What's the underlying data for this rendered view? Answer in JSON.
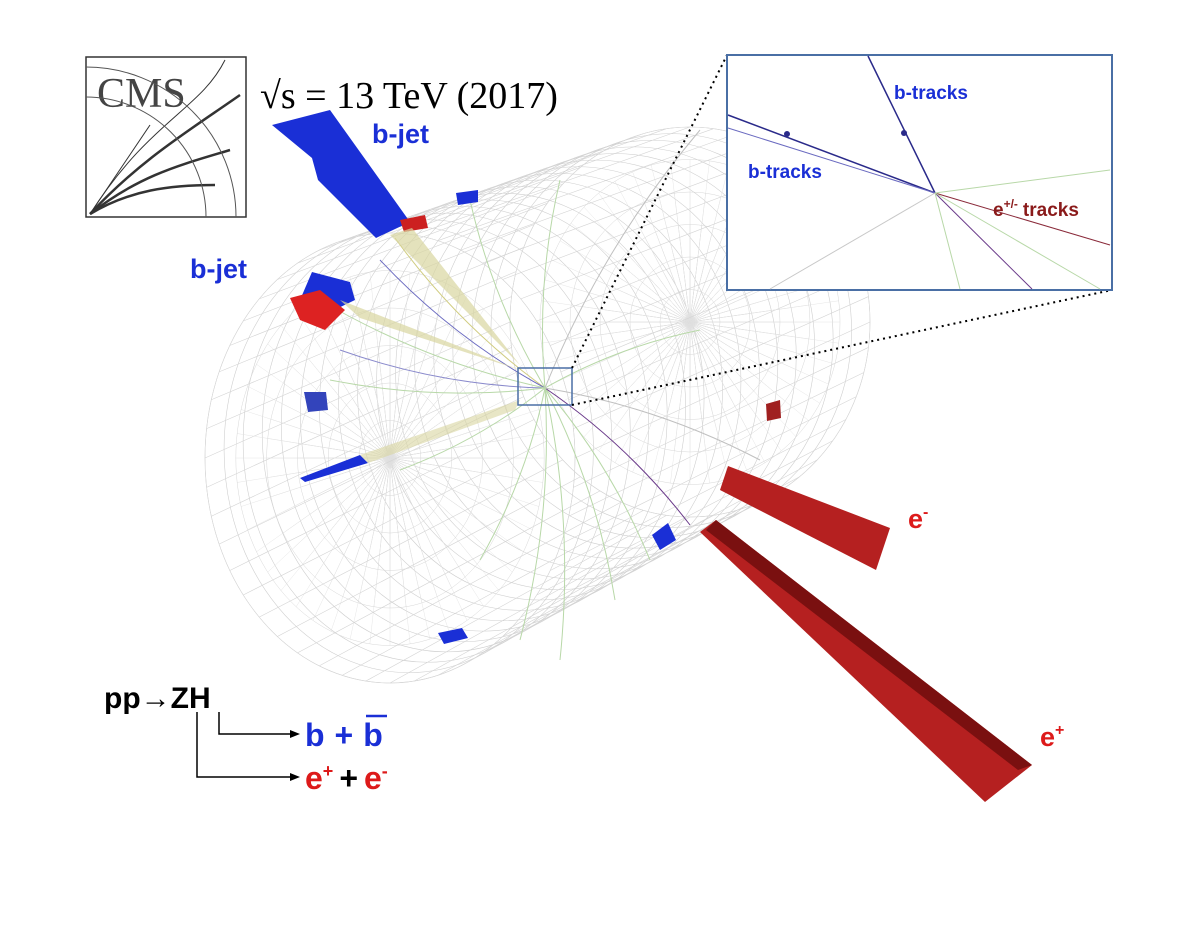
{
  "logo": {
    "text": "CMS"
  },
  "energy": {
    "text": "√s = 13 TeV (2017)"
  },
  "event": {
    "bjet_upper": "b-jet",
    "bjet_left": "b-jet",
    "electron": {
      "base": "e",
      "sup": "-"
    },
    "positron": {
      "base": "e",
      "sup": "+"
    }
  },
  "inset": {
    "btracks_top": "b-tracks",
    "btracks_left": "b-tracks",
    "etracks": {
      "base": "e",
      "sup": "+/-",
      "rest": "tracks"
    }
  },
  "process": {
    "reaction": "pp→ZH",
    "bb": {
      "b": "b",
      "plus": "+",
      "bbar": "b"
    },
    "ee": {
      "pos": "e",
      "pos_sup": "+",
      "plus": "+",
      "neg": "e",
      "neg_sup": "-"
    }
  }
}
